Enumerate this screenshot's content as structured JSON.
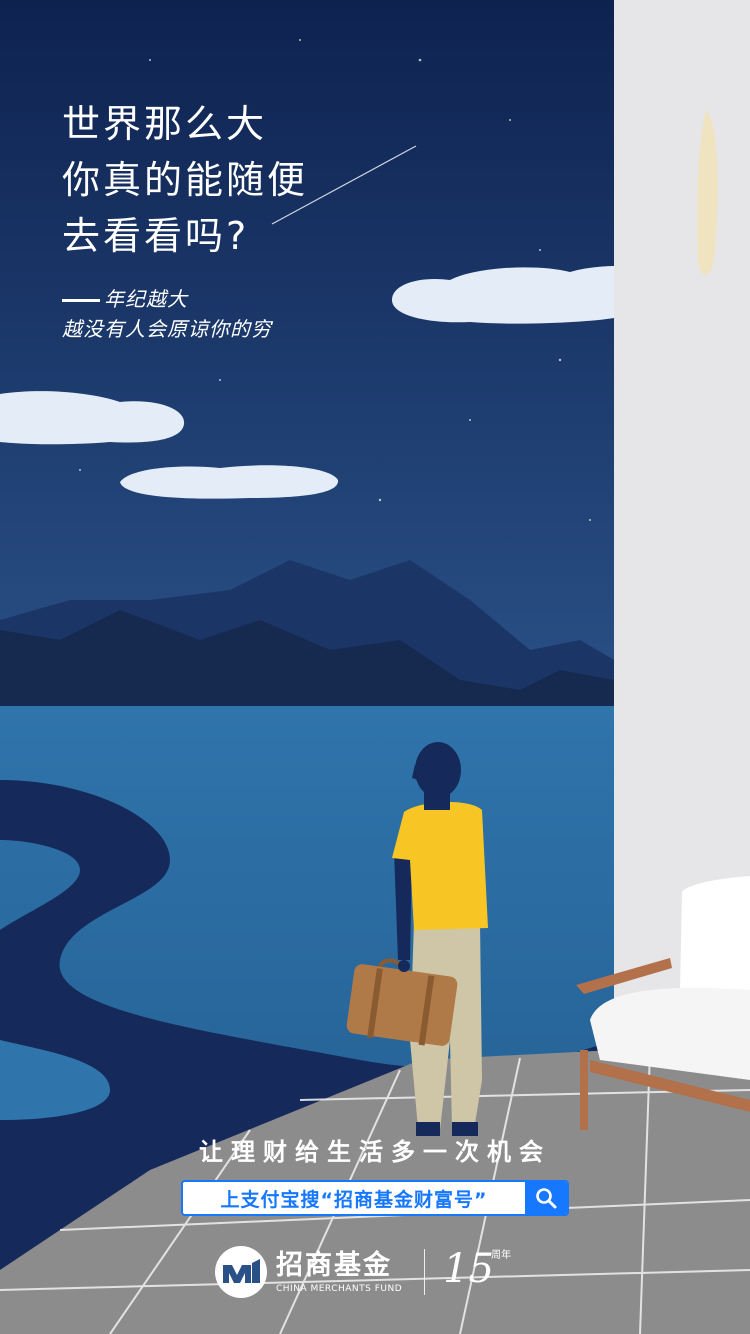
{
  "headline": {
    "lines": [
      "世界那么大",
      "你真的能随便",
      "去看看吗?"
    ]
  },
  "subtitle": {
    "line1": "年纪越大",
    "line2": "越没有人会原谅你的穷"
  },
  "slogan": "让理财给生活多一次机会",
  "search": {
    "text": "上支付宝搜“招商基金财富号”",
    "icon": "search-icon"
  },
  "brand": {
    "name_cn": "招商基金",
    "name_en": "CHINA MERCHANTS FUND",
    "anniversary_number": "15",
    "anniversary_label": "周年"
  },
  "colors": {
    "sky_top": "#0e2250",
    "sky_bottom": "#2a5187",
    "sea": "#2b6aa0",
    "wall": "#e6e6e8",
    "shirt": "#f7c625",
    "search_blue": "#1677ff"
  }
}
